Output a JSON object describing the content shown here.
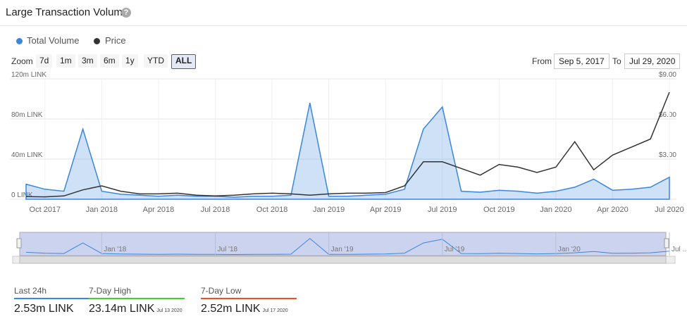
{
  "header": {
    "title": "Large Transaction Volume"
  },
  "controls": {
    "zoom_label": "Zoom",
    "zoom_buttons": [
      "7d",
      "1m",
      "3m",
      "6m",
      "1y",
      "YTD",
      "ALL"
    ],
    "from_label": "From",
    "from_value": "Sep 5, 2017",
    "to_label": "To",
    "to_value": "Jul 29, 2020"
  },
  "chart_data": {
    "type": "line",
    "x": [
      "2017-09",
      "2017-10",
      "2017-11",
      "2017-12",
      "2018-01",
      "2018-02",
      "2018-03",
      "2018-04",
      "2018-05",
      "2018-06",
      "2018-07",
      "2018-08",
      "2018-09",
      "2018-10",
      "2018-11",
      "2018-12",
      "2019-01",
      "2019-02",
      "2019-03",
      "2019-04",
      "2019-05",
      "2019-06",
      "2019-07",
      "2019-08",
      "2019-09",
      "2019-10",
      "2019-11",
      "2019-12",
      "2020-01",
      "2020-02",
      "2020-03",
      "2020-04",
      "2020-05",
      "2020-06",
      "2020-07"
    ],
    "series": [
      {
        "name": "Total Volume",
        "color": "#3a86e0",
        "style": "area",
        "values": [
          15000000,
          10000000,
          8000000,
          70000000,
          8000000,
          5000000,
          4000000,
          3000000,
          4000000,
          3000000,
          3000000,
          2000000,
          3000000,
          3000000,
          4000000,
          96000000,
          3000000,
          3000000,
          4000000,
          5000000,
          10000000,
          70000000,
          92000000,
          8000000,
          7000000,
          9000000,
          8000000,
          6000000,
          8000000,
          12000000,
          20000000,
          9000000,
          10000000,
          12000000,
          22000000
        ]
      },
      {
        "name": "Price",
        "color": "#333333",
        "style": "line",
        "axis": "y2",
        "values": [
          0.2,
          0.18,
          0.25,
          0.7,
          1.0,
          0.6,
          0.4,
          0.4,
          0.45,
          0.3,
          0.25,
          0.3,
          0.4,
          0.45,
          0.4,
          0.3,
          0.4,
          0.45,
          0.45,
          0.5,
          1.0,
          2.8,
          2.8,
          2.3,
          1.8,
          2.6,
          2.4,
          2.0,
          2.4,
          4.3,
          2.2,
          3.3,
          3.9,
          4.5,
          8.0
        ]
      }
    ],
    "xlim": [
      "2017-09",
      "2020-07"
    ],
    "xticks": [
      {
        "value": "2017-10",
        "label": "Oct 2017"
      },
      {
        "value": "2018-01",
        "label": "Jan 2018"
      },
      {
        "value": "2018-04",
        "label": "Apr 2018"
      },
      {
        "value": "2018-07",
        "label": "Jul 2018"
      },
      {
        "value": "2018-10",
        "label": "Oct 2018"
      },
      {
        "value": "2019-01",
        "label": "Jan 2019"
      },
      {
        "value": "2019-04",
        "label": "Apr 2019"
      },
      {
        "value": "2019-07",
        "label": "Jul 2019"
      },
      {
        "value": "2019-10",
        "label": "Oct 2019"
      },
      {
        "value": "2020-01",
        "label": "Jan 2020"
      },
      {
        "value": "2020-04",
        "label": "Apr 2020"
      },
      {
        "value": "2020-07",
        "label": "Jul 2020"
      }
    ],
    "ylim": [
      0,
      120000000
    ],
    "yticks": [
      {
        "value": 0,
        "label": "0 LINK"
      },
      {
        "value": 40000000,
        "label": "40m LINK"
      },
      {
        "value": 80000000,
        "label": "80m LINK"
      },
      {
        "value": 120000000,
        "label": "120m LINK"
      }
    ],
    "y2lim": [
      0,
      9
    ],
    "y2ticks": [
      {
        "value": 3,
        "label": "$3.00"
      },
      {
        "value": 6,
        "label": "$6.00"
      },
      {
        "value": 9,
        "label": "$9.00"
      }
    ],
    "grid": true
  },
  "navigator": {
    "labels": [
      {
        "value": "2018-01",
        "label": "Jan '18"
      },
      {
        "value": "2018-07",
        "label": "Jul '18"
      },
      {
        "value": "2019-01",
        "label": "Jan '19"
      },
      {
        "value": "2019-07",
        "label": "Jul '19"
      },
      {
        "value": "2020-01",
        "label": "Jan '20"
      },
      {
        "value": "2020-07",
        "label": "Jul ..."
      }
    ]
  },
  "stats": [
    {
      "label": "Last 24h",
      "value": "2.53m LINK"
    },
    {
      "label": "7-Day High",
      "value": "23.14m LINK",
      "date": "Jul 13 2020"
    },
    {
      "label": "7-Day Low",
      "value": "2.52m LINK",
      "date": "Jul 17 2020"
    }
  ]
}
